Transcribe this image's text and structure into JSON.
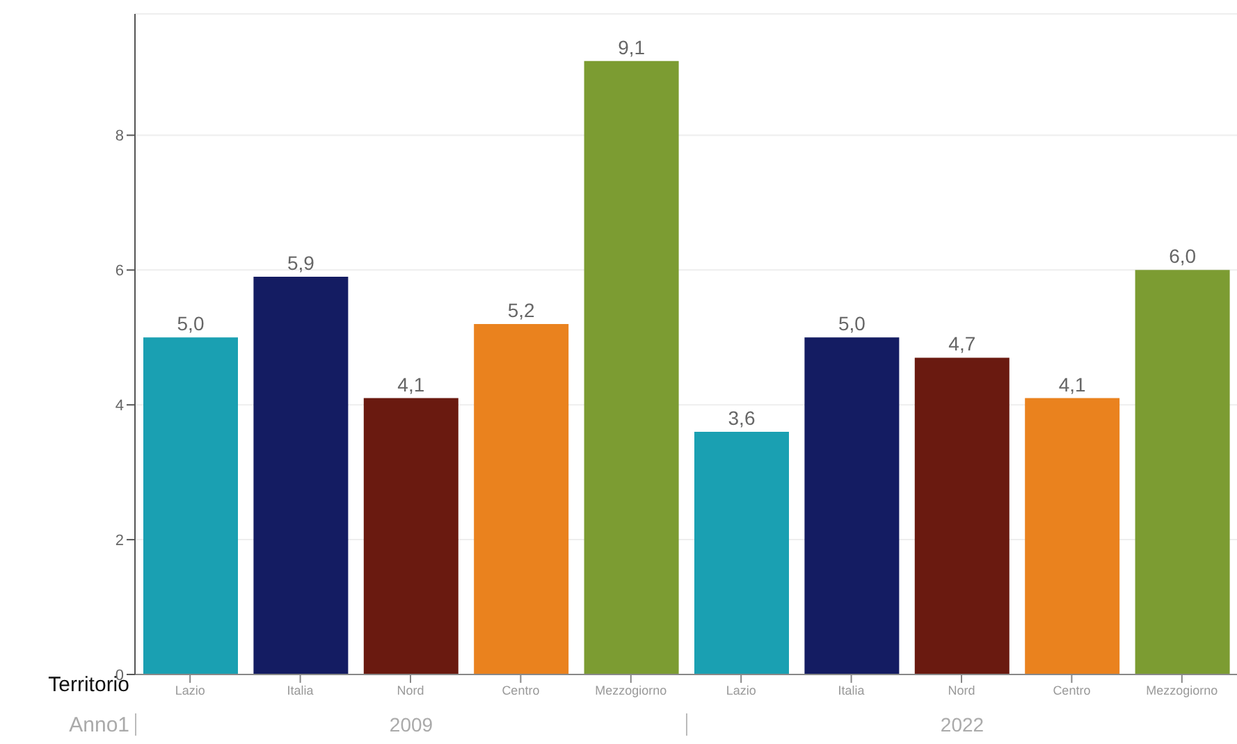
{
  "chart_data": {
    "type": "bar",
    "xlabel": "Territorio",
    "categories": [
      "Lazio",
      "Italia",
      "Nord",
      "Centro",
      "Mezzogiorno",
      "Lazio",
      "Italia",
      "Nord",
      "Centro",
      "Mezzogiorno"
    ],
    "values": [
      5.0,
      5.9,
      4.1,
      5.2,
      9.1,
      3.6,
      5.0,
      4.7,
      4.1,
      6.0
    ],
    "colors": [
      "#1aa0b2",
      "#141c62",
      "#6a1a10",
      "#ea821e",
      "#7c9c32",
      "#1aa0b2",
      "#141c62",
      "#6a1a10",
      "#ea821e",
      "#7c9c32"
    ],
    "value_labels": [
      "5,0",
      "5,9",
      "4,1",
      "5,2",
      "9,1",
      "3,6",
      "5,0",
      "4,7",
      "4,1",
      "6,0"
    ],
    "ylim": [
      0,
      9.8
    ],
    "yticks": [
      0,
      2,
      4,
      6,
      8
    ],
    "grid": "y",
    "annotations": [
      "Anno1",
      "2009",
      "2022"
    ]
  }
}
